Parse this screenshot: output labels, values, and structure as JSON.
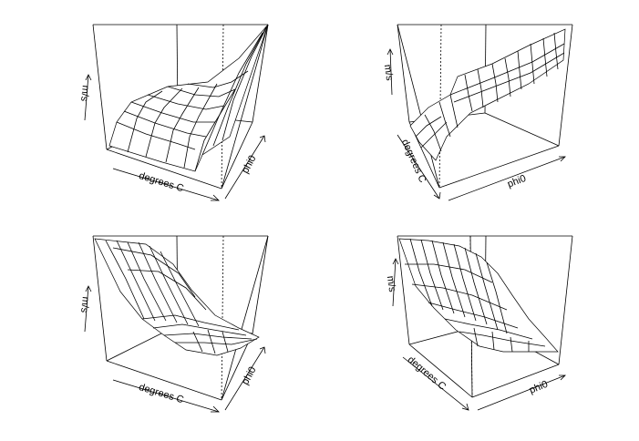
{
  "chart_data": [
    {
      "type": "surface3d",
      "panel": "top-left",
      "xlabel": "degrees C",
      "ylabel": "phi0",
      "zlabel": "m/s",
      "grid_shape": [
        7,
        7
      ],
      "surface_shape": "rising surface, lowest near degrees C low / phi0 low, steep rise toward the phi0 axis"
    },
    {
      "type": "surface3d",
      "panel": "top-right",
      "xlabel": "degrees C",
      "ylabel": "phi0",
      "zlabel": "m/s",
      "grid_shape": [
        7,
        7
      ],
      "surface_shape": "sheet rising along phi0 after a drop near the degrees C axis"
    },
    {
      "type": "surface3d",
      "panel": "bottom-left",
      "xlabel": "degrees C",
      "ylabel": "phi0",
      "zlabel": "m/s",
      "grid_shape": [
        7,
        7
      ],
      "surface_shape": "decaying surface, high at the back, flattening toward the front corner"
    },
    {
      "type": "surface3d",
      "panel": "bottom-right",
      "xlabel": "degrees C",
      "ylabel": "phi0",
      "zlabel": "m/s",
      "grid_shape": [
        7,
        7
      ],
      "surface_shape": "decaying surface, high at the back, flattening toward the front corner"
    }
  ]
}
